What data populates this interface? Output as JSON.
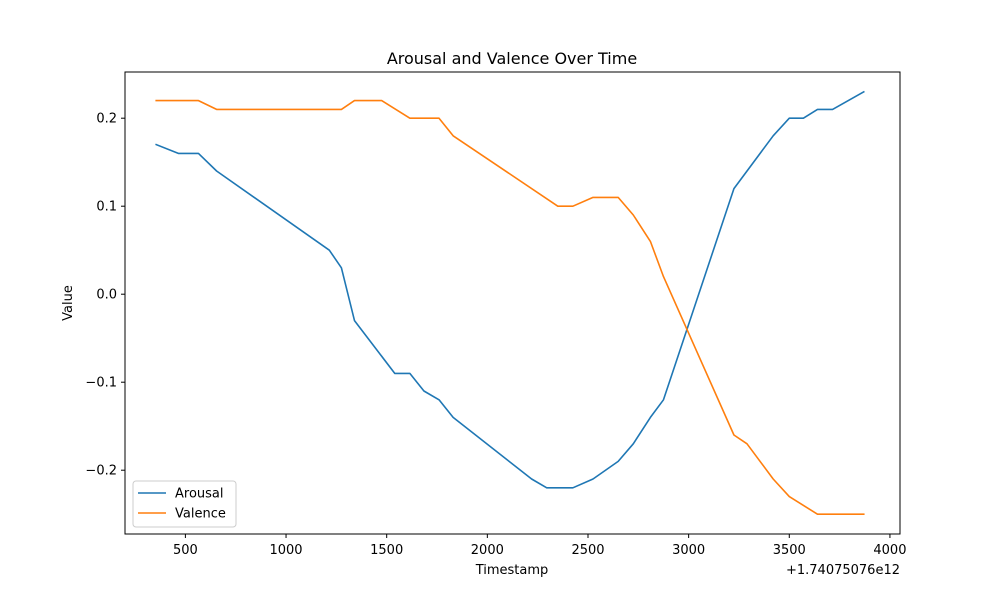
{
  "chart_data": {
    "type": "line",
    "title": "Arousal and Valence Over Time",
    "xlabel": "Timestamp",
    "ylabel": "Value",
    "x_offset_label": "+1.74075076e12",
    "xlim": [
      200,
      4050
    ],
    "ylim": [
      -0.2725,
      0.2525
    ],
    "x_ticks": [
      500,
      1000,
      1500,
      2000,
      2500,
      3000,
      3500,
      4000
    ],
    "x_tick_labels": [
      "500",
      "1000",
      "1500",
      "2000",
      "2500",
      "3000",
      "3500",
      "4000"
    ],
    "y_ticks": [
      -0.2,
      -0.1,
      0.0,
      0.1,
      0.2
    ],
    "y_tick_labels": [
      "−0.2",
      "−0.1",
      "0.0",
      "0.1",
      "0.2"
    ],
    "legend_location": "lower left",
    "grid": false,
    "series": [
      {
        "name": "Arousal",
        "color": "#1f77b4",
        "points": [
          [
            355,
            0.17
          ],
          [
            465,
            0.16
          ],
          [
            565,
            0.16
          ],
          [
            655,
            0.14
          ],
          [
            1215,
            0.05
          ],
          [
            1275,
            0.03
          ],
          [
            1340,
            -0.03
          ],
          [
            1540,
            -0.09
          ],
          [
            1615,
            -0.09
          ],
          [
            1685,
            -0.11
          ],
          [
            1760,
            -0.12
          ],
          [
            1830,
            -0.14
          ],
          [
            2220,
            -0.21
          ],
          [
            2295,
            -0.22
          ],
          [
            2425,
            -0.22
          ],
          [
            2525,
            -0.21
          ],
          [
            2650,
            -0.19
          ],
          [
            2725,
            -0.17
          ],
          [
            2810,
            -0.14
          ],
          [
            2875,
            -0.12
          ],
          [
            3225,
            0.12
          ],
          [
            3420,
            0.18
          ],
          [
            3500,
            0.2
          ],
          [
            3570,
            0.2
          ],
          [
            3640,
            0.21
          ],
          [
            3715,
            0.21
          ],
          [
            3870,
            0.23
          ]
        ]
      },
      {
        "name": "Valence",
        "color": "#ff7f0e",
        "points": [
          [
            355,
            0.22
          ],
          [
            565,
            0.22
          ],
          [
            655,
            0.21
          ],
          [
            1275,
            0.21
          ],
          [
            1340,
            0.22
          ],
          [
            1475,
            0.22
          ],
          [
            1615,
            0.2
          ],
          [
            1760,
            0.2
          ],
          [
            1830,
            0.18
          ],
          [
            2350,
            0.1
          ],
          [
            2425,
            0.1
          ],
          [
            2525,
            0.11
          ],
          [
            2650,
            0.11
          ],
          [
            2725,
            0.09
          ],
          [
            2810,
            0.06
          ],
          [
            2875,
            0.02
          ],
          [
            3225,
            -0.16
          ],
          [
            3290,
            -0.17
          ],
          [
            3420,
            -0.21
          ],
          [
            3500,
            -0.23
          ],
          [
            3640,
            -0.25
          ],
          [
            3870,
            -0.25
          ]
        ]
      }
    ]
  }
}
